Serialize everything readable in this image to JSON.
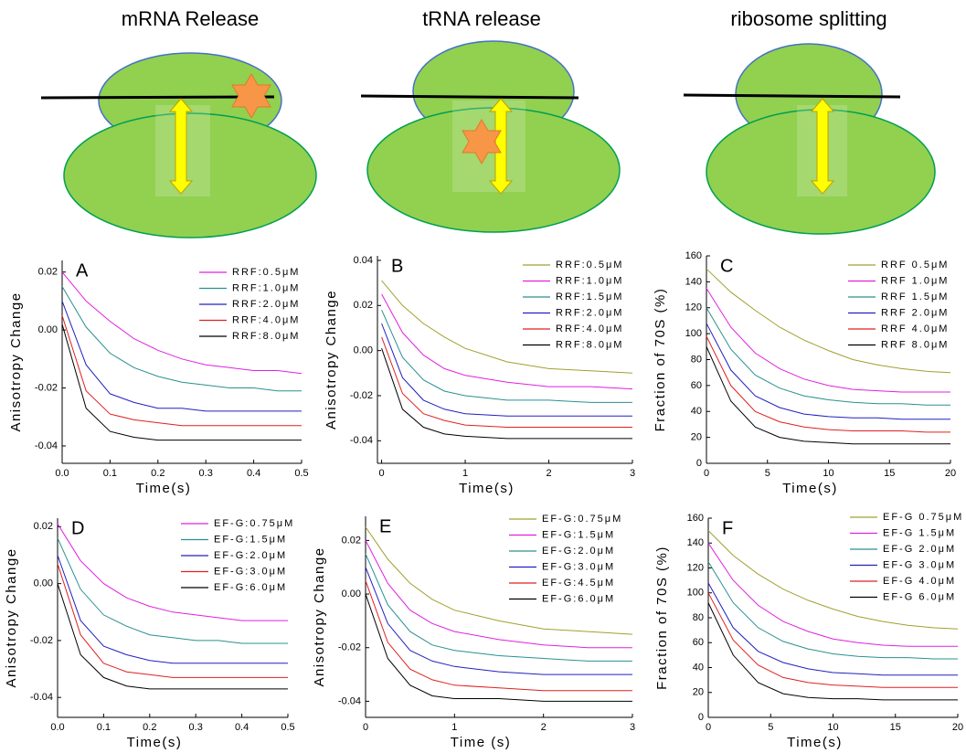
{
  "diagrams": [
    {
      "title": "mRNA Release"
    },
    {
      "title": "tRNA release"
    },
    {
      "title": "ribosome splitting"
    }
  ],
  "chart_data": [
    {
      "type": "line",
      "label": "A",
      "xlabel": "Time(s)",
      "ylabel": "Anisotropy Change",
      "x": [
        0,
        0.05,
        0.1,
        0.15,
        0.2,
        0.25,
        0.3,
        0.35,
        0.4,
        0.45,
        0.5
      ],
      "xlim": [
        0,
        0.5
      ],
      "ylim": [
        -0.046,
        0.024
      ],
      "xticks": [
        {
          "value": 0,
          "label": "0.0"
        },
        0.1,
        0.2,
        0.3,
        0.4,
        0.5
      ],
      "yticks": [
        0.02,
        {
          "value": 0,
          "label": "0.00"
        },
        -0.02,
        -0.04
      ],
      "series": [
        {
          "name": "RRF:0.5μM",
          "color": "#e020e0",
          "values": [
            0.02,
            0.01,
            0.003,
            -0.003,
            -0.007,
            -0.01,
            -0.012,
            -0.013,
            -0.014,
            -0.014,
            -0.015
          ]
        },
        {
          "name": "RRF:1.0μM",
          "color": "#2a9090",
          "values": [
            0.015,
            0.001,
            -0.008,
            -0.013,
            -0.016,
            -0.018,
            -0.019,
            -0.02,
            -0.02,
            -0.021,
            -0.021
          ]
        },
        {
          "name": "RRF:2.0μM",
          "color": "#2020c0",
          "values": [
            0.01,
            -0.012,
            -0.022,
            -0.025,
            -0.027,
            -0.027,
            -0.028,
            -0.028,
            -0.028,
            -0.028,
            -0.028
          ]
        },
        {
          "name": "RRF:4.0μM",
          "color": "#e02020",
          "values": [
            0.005,
            -0.021,
            -0.029,
            -0.031,
            -0.032,
            -0.033,
            -0.033,
            -0.033,
            -0.033,
            -0.033,
            -0.033
          ]
        },
        {
          "name": "RRF:8.0μM",
          "color": "#000000",
          "values": [
            0.002,
            -0.027,
            -0.035,
            -0.037,
            -0.038,
            -0.038,
            -0.038,
            -0.038,
            -0.038,
            -0.038,
            -0.038
          ]
        }
      ]
    },
    {
      "type": "line",
      "label": "B",
      "xlabel": "Time(s)",
      "ylabel": "Anisotropy Change",
      "x": [
        0,
        0.25,
        0.5,
        0.75,
        1,
        1.5,
        2,
        2.5,
        3
      ],
      "xlim": [
        -0.05,
        3
      ],
      "ylim": [
        -0.05,
        0.042
      ],
      "xticks": [
        0,
        1,
        2,
        3
      ],
      "yticks": [
        0.04,
        0.02,
        {
          "value": 0,
          "label": "0.00"
        },
        -0.02,
        -0.04
      ],
      "series": [
        {
          "name": "RRF:0.5μM",
          "color": "#a0a030",
          "values": [
            0.031,
            0.02,
            0.012,
            0.006,
            0.001,
            -0.005,
            -0.008,
            -0.009,
            -0.01
          ]
        },
        {
          "name": "RRF:1.0μM",
          "color": "#e020e0",
          "values": [
            0.025,
            0.008,
            -0.002,
            -0.008,
            -0.011,
            -0.014,
            -0.016,
            -0.016,
            -0.017
          ]
        },
        {
          "name": "RRF:1.5μM",
          "color": "#2a9090",
          "values": [
            0.018,
            -0.003,
            -0.013,
            -0.018,
            -0.02,
            -0.022,
            -0.022,
            -0.023,
            -0.023
          ]
        },
        {
          "name": "RRF:2.0μM",
          "color": "#2020c0",
          "values": [
            0.012,
            -0.012,
            -0.022,
            -0.026,
            -0.028,
            -0.029,
            -0.029,
            -0.029,
            -0.029
          ]
        },
        {
          "name": "RRF:4.0μM",
          "color": "#e02020",
          "values": [
            0.006,
            -0.019,
            -0.028,
            -0.031,
            -0.033,
            -0.034,
            -0.034,
            -0.034,
            -0.034
          ]
        },
        {
          "name": "RRF:8.0μM",
          "color": "#000000",
          "values": [
            0.001,
            -0.026,
            -0.034,
            -0.037,
            -0.038,
            -0.039,
            -0.039,
            -0.039,
            -0.039
          ]
        }
      ]
    },
    {
      "type": "line",
      "label": "C",
      "xlabel": "Time(s)",
      "ylabel": "Fraction of 70S (%)",
      "x": [
        0,
        2,
        4,
        6,
        8,
        10,
        12,
        14,
        16,
        18,
        20
      ],
      "xlim": [
        0,
        20
      ],
      "ylim": [
        0,
        160
      ],
      "xticks": [
        0,
        5,
        10,
        15,
        20
      ],
      "yticks": [
        0,
        20,
        40,
        60,
        80,
        100,
        120,
        140,
        160
      ],
      "series": [
        {
          "name": "RRF 0.5μM",
          "color": "#a0a030",
          "values": [
            150,
            132,
            118,
            105,
            95,
            87,
            80,
            76,
            73,
            71,
            70
          ]
        },
        {
          "name": "RRF 1.0μM",
          "color": "#e020e0",
          "values": [
            135,
            105,
            85,
            73,
            65,
            60,
            57,
            56,
            55,
            55,
            55
          ]
        },
        {
          "name": "RRF 1.5μM",
          "color": "#2a9090",
          "values": [
            120,
            88,
            68,
            58,
            52,
            49,
            47,
            46,
            46,
            45,
            45
          ]
        },
        {
          "name": "RRF 2.0μM",
          "color": "#2020c0",
          "values": [
            108,
            72,
            52,
            43,
            38,
            36,
            35,
            35,
            34,
            34,
            34
          ]
        },
        {
          "name": "RRF 4.0μM",
          "color": "#e02020",
          "values": [
            98,
            60,
            40,
            32,
            28,
            26,
            25,
            25,
            25,
            24,
            24
          ]
        },
        {
          "name": "RRF 8.0μM",
          "color": "#000000",
          "values": [
            90,
            48,
            28,
            20,
            17,
            16,
            15,
            15,
            15,
            15,
            15
          ]
        }
      ]
    },
    {
      "type": "line",
      "label": "D",
      "xlabel": "Time(s)",
      "ylabel": "Anisotropy Change",
      "x": [
        0,
        0.05,
        0.1,
        0.15,
        0.2,
        0.25,
        0.3,
        0.35,
        0.4,
        0.45,
        0.5
      ],
      "xlim": [
        0,
        0.5
      ],
      "ylim": [
        -0.047,
        0.023
      ],
      "xticks": [
        {
          "value": 0,
          "label": "0.0"
        },
        0.1,
        0.2,
        0.3,
        0.4,
        0.5
      ],
      "yticks": [
        0.02,
        {
          "value": 0,
          "label": "0.00"
        },
        -0.02,
        -0.04
      ],
      "series": [
        {
          "name": "EF-G:0.75μM",
          "color": "#e020e0",
          "values": [
            0.021,
            0.008,
            0.0,
            -0.005,
            -0.008,
            -0.01,
            -0.011,
            -0.012,
            -0.013,
            -0.013,
            -0.013
          ]
        },
        {
          "name": "EF-G:1.5μM",
          "color": "#2a9090",
          "values": [
            0.016,
            -0.002,
            -0.011,
            -0.015,
            -0.018,
            -0.019,
            -0.02,
            -0.02,
            -0.021,
            -0.021,
            -0.021
          ]
        },
        {
          "name": "EF-G:2.0μM",
          "color": "#2020c0",
          "values": [
            0.01,
            -0.013,
            -0.022,
            -0.025,
            -0.027,
            -0.028,
            -0.028,
            -0.028,
            -0.028,
            -0.028,
            -0.028
          ]
        },
        {
          "name": "EF-G:3.0μM",
          "color": "#e02020",
          "values": [
            0.007,
            -0.018,
            -0.028,
            -0.031,
            -0.032,
            -0.033,
            -0.033,
            -0.033,
            -0.033,
            -0.033,
            -0.033
          ]
        },
        {
          "name": "EF-G:6.0μM",
          "color": "#000000",
          "values": [
            0.0,
            -0.025,
            -0.033,
            -0.036,
            -0.037,
            -0.037,
            -0.037,
            -0.037,
            -0.037,
            -0.037,
            -0.037
          ]
        }
      ]
    },
    {
      "type": "line",
      "label": "E",
      "xlabel": "Time (s)",
      "ylabel": "Anisotropy Change",
      "x": [
        0,
        0.25,
        0.5,
        0.75,
        1,
        1.5,
        2,
        2.5,
        3
      ],
      "xlim": [
        0,
        3
      ],
      "ylim": [
        -0.046,
        0.029
      ],
      "xticks": [
        0,
        1,
        2,
        3
      ],
      "yticks": [
        0.02,
        {
          "value": 0,
          "label": "0.00"
        },
        -0.02,
        -0.04
      ],
      "series": [
        {
          "name": "EF-G:0.75μM",
          "color": "#a0a030",
          "values": [
            0.025,
            0.013,
            0.004,
            -0.002,
            -0.006,
            -0.01,
            -0.013,
            -0.014,
            -0.015
          ]
        },
        {
          "name": "EF-G:1.5μM",
          "color": "#e020e0",
          "values": [
            0.02,
            0.004,
            -0.006,
            -0.011,
            -0.014,
            -0.017,
            -0.019,
            -0.02,
            -0.02
          ]
        },
        {
          "name": "EF-G:2.0μM",
          "color": "#2a9090",
          "values": [
            0.015,
            -0.004,
            -0.014,
            -0.019,
            -0.021,
            -0.023,
            -0.024,
            -0.025,
            -0.025
          ]
        },
        {
          "name": "EF-G:3.0μM",
          "color": "#2020c0",
          "values": [
            0.01,
            -0.011,
            -0.021,
            -0.025,
            -0.027,
            -0.029,
            -0.03,
            -0.03,
            -0.03
          ]
        },
        {
          "name": "EF-G:4.5μM",
          "color": "#e02020",
          "values": [
            0.005,
            -0.018,
            -0.028,
            -0.032,
            -0.034,
            -0.035,
            -0.036,
            -0.036,
            -0.036
          ]
        },
        {
          "name": "EF-G:6.0μM",
          "color": "#000000",
          "values": [
            0.0,
            -0.024,
            -0.034,
            -0.038,
            -0.039,
            -0.039,
            -0.04,
            -0.04,
            -0.04
          ]
        }
      ]
    },
    {
      "type": "line",
      "label": "F",
      "xlabel": "Time(s)",
      "ylabel": "Fraction of 70S (%)",
      "x": [
        0,
        2,
        4,
        6,
        8,
        10,
        12,
        14,
        16,
        18,
        20
      ],
      "xlim": [
        0,
        20
      ],
      "ylim": [
        0,
        160
      ],
      "xticks": [
        0,
        5,
        10,
        15,
        20
      ],
      "yticks": [
        0,
        20,
        40,
        60,
        80,
        100,
        120,
        140,
        160
      ],
      "series": [
        {
          "name": "EF-G 0.75μM",
          "color": "#a0a030",
          "values": [
            150,
            130,
            115,
            103,
            94,
            87,
            81,
            77,
            74,
            72,
            71
          ]
        },
        {
          "name": "EF-G 1.5μM",
          "color": "#e020e0",
          "values": [
            140,
            110,
            90,
            77,
            69,
            63,
            60,
            58,
            57,
            57,
            57
          ]
        },
        {
          "name": "EF-G 2.0μM",
          "color": "#2a9090",
          "values": [
            125,
            92,
            72,
            61,
            55,
            51,
            49,
            48,
            48,
            47,
            47
          ]
        },
        {
          "name": "EF-G 3.0μM",
          "color": "#2020c0",
          "values": [
            108,
            72,
            53,
            44,
            39,
            36,
            35,
            34,
            34,
            34,
            34
          ]
        },
        {
          "name": "EF-G 4.0μM",
          "color": "#e02020",
          "values": [
            100,
            62,
            42,
            32,
            28,
            26,
            25,
            24,
            24,
            24,
            24
          ]
        },
        {
          "name": "EF-G 6.0μM",
          "color": "#000000",
          "values": [
            92,
            50,
            28,
            19,
            16,
            15,
            15,
            14,
            14,
            14,
            14
          ]
        }
      ]
    }
  ]
}
